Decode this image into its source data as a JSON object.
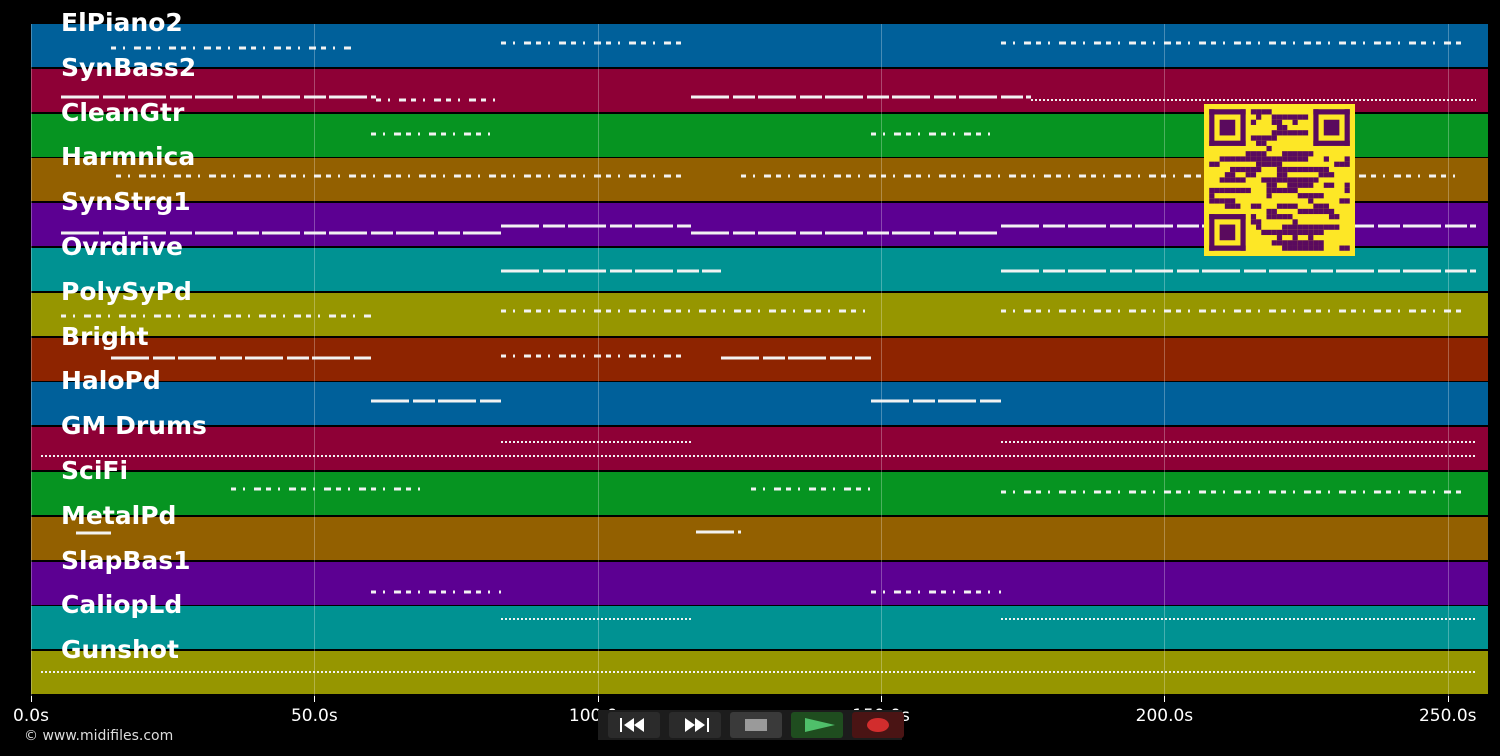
{
  "tracks": [
    {
      "name": "ElPiano2",
      "color": "#00609a"
    },
    {
      "name": "SynBass2",
      "color": "#8e0036"
    },
    {
      "name": "CleanGtr",
      "color": "#069421"
    },
    {
      "name": "Harmnica",
      "color": "#936000"
    },
    {
      "name": "SynStrg1",
      "color": "#5c0092"
    },
    {
      "name": "Ovrdrive",
      "color": "#009292"
    },
    {
      "name": "PolySyPd",
      "color": "#969600"
    },
    {
      "name": "Bright",
      "color": "#8e2400"
    },
    {
      "name": "HaloPd",
      "color": "#00609a"
    },
    {
      "name": "GM Drums",
      "color": "#8e0036"
    },
    {
      "name": "SciFi",
      "color": "#069421"
    },
    {
      "name": "MetalPd",
      "color": "#936000"
    },
    {
      "name": "SlapBas1",
      "color": "#5c0092"
    },
    {
      "name": "CaliopLd",
      "color": "#009292"
    },
    {
      "name": "Gunshot",
      "color": "#969600"
    }
  ],
  "timeline": {
    "max_seconds": 257,
    "ticks": [
      "0.0s",
      "50.0s",
      "100.0s",
      "150.0s",
      "200.0s",
      "250.0s"
    ]
  },
  "copyright": "© www.midifiles.com",
  "transport": {
    "rewind": "rewind-icon",
    "fast_forward": "fast-forward-icon",
    "stop": "stop-icon",
    "play": "play-icon",
    "record": "record-icon"
  },
  "qr_code": {
    "foreground": "#5a0a5e",
    "background": "#fde726"
  }
}
